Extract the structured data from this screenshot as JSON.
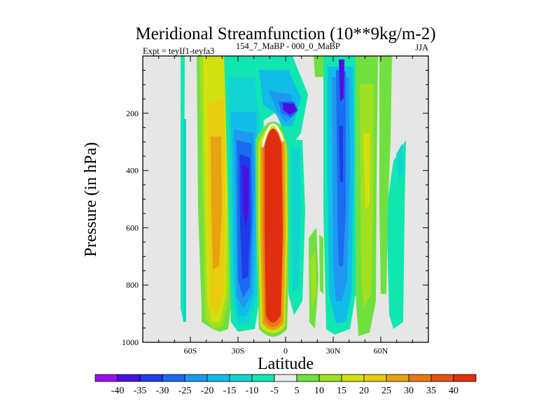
{
  "chart_data": {
    "type": "heatmap",
    "title": "Meridional Streamfunction (10**9kg/m-2)",
    "subtitle_left": "Expt = teyIf1-teyfa3",
    "subtitle_left_super": "154_7_MaBP - 000_0_MaBP",
    "subtitle_right": "JJA",
    "xlabel": "Latitude",
    "ylabel": "Pressure (in hPa)",
    "xlim": [
      -90,
      90
    ],
    "ylim": [
      0,
      1000
    ],
    "y_inverted": true,
    "x_ticks": [
      {
        "v": -60,
        "label": "60S"
      },
      {
        "v": -30,
        "label": "30S"
      },
      {
        "v": 0,
        "label": "0"
      },
      {
        "v": 30,
        "label": "30N"
      },
      {
        "v": 60,
        "label": "60N"
      }
    ],
    "y_ticks": [
      {
        "v": 200,
        "label": "200"
      },
      {
        "v": 400,
        "label": "400"
      },
      {
        "v": 600,
        "label": "600"
      },
      {
        "v": 800,
        "label": "800"
      },
      {
        "v": 1000,
        "label": "1000"
      }
    ],
    "levels": [
      "-40",
      "-35",
      "-30",
      "-25",
      "-20",
      "-15",
      "-10",
      "-5",
      "5",
      "10",
      "15",
      "20",
      "25",
      "30",
      "35",
      "40"
    ],
    "level_colors": [
      "#9a10f0",
      "#4a10e0",
      "#1e3ce8",
      "#1a6cf0",
      "#1e98f0",
      "#10bce8",
      "#10d4d0",
      "#10e6b0",
      "#ececec",
      "#70e040",
      "#a0e020",
      "#d2e010",
      "#e8cc10",
      "#e8a210",
      "#e87810",
      "#e85010",
      "#e02e10"
    ],
    "no_data_color": "#e6e6e6",
    "features": [
      {
        "name": "cell-south-positive",
        "lat_min": -62,
        "lat_max": -34,
        "p_top": 0,
        "p_bot": 960,
        "peak": 23
      },
      {
        "name": "cell-south-negative",
        "lat_min": -38,
        "lat_max": -12,
        "p_top": 60,
        "p_bot": 980,
        "peak": -34
      },
      {
        "name": "cell-equatorial-positive",
        "lat_min": -13,
        "lat_max": 3,
        "p_top": 195,
        "p_bot": 985,
        "peak": 42
      },
      {
        "name": "cell-upper-negative",
        "lat_min": -4,
        "lat_max": 8,
        "p_top": 140,
        "p_bot": 230,
        "peak": -36
      },
      {
        "name": "cell-north-negative",
        "lat_min": 30,
        "lat_max": 43,
        "p_top": 0,
        "p_bot": 990,
        "peak": -31
      },
      {
        "name": "cell-north-positive",
        "lat_min": 49,
        "lat_max": 57,
        "p_top": 0,
        "p_bot": 980,
        "peak": 12
      },
      {
        "name": "band-far-north-negative",
        "lat_min": 62,
        "lat_max": 74,
        "p_top": 220,
        "p_bot": 950,
        "peak": -8
      }
    ]
  }
}
